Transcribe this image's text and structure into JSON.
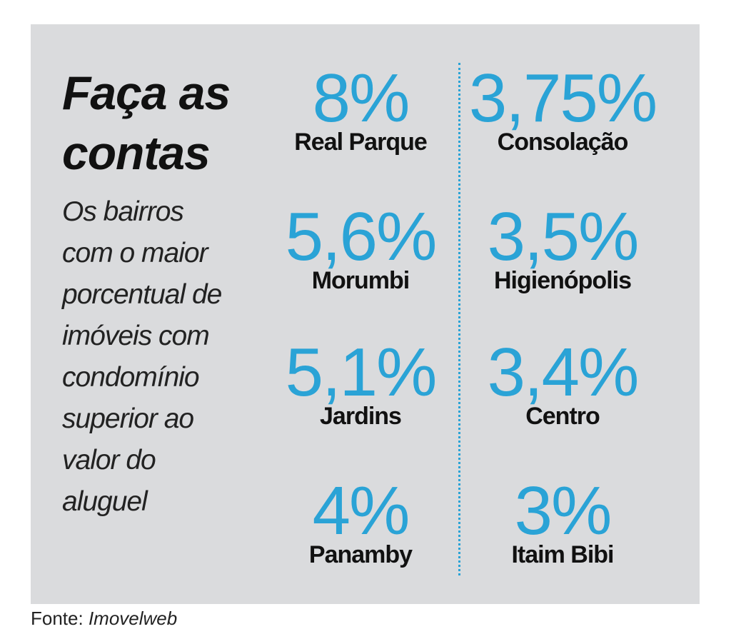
{
  "headline": [
    "Faça as",
    "contas"
  ],
  "subtitle": [
    "Os bairros",
    "com o maior",
    "porcentual de",
    "imóveis com",
    "condomínio",
    "superior ao",
    "valor do",
    "aluguel"
  ],
  "source": {
    "prefix": "Fonte:",
    "name": "Imovelweb"
  },
  "colors": {
    "accent": "#2aa3d6",
    "panel": "#dadbdd",
    "text": "#111111"
  },
  "chart_data": {
    "type": "table",
    "title": "Faça as contas",
    "subtitle": "Os bairros com o maior porcentual de imóveis com condomínio superior ao valor do aluguel",
    "unit": "%",
    "columns": [
      {
        "items": [
          {
            "display": "8%",
            "value": 8,
            "name": "Real Parque"
          },
          {
            "display": "5,6%",
            "value": 5.6,
            "name": "Morumbi"
          },
          {
            "display": "5,1%",
            "value": 5.1,
            "name": "Jardins"
          },
          {
            "display": "4%",
            "value": 4,
            "name": "Panamby"
          }
        ]
      },
      {
        "items": [
          {
            "display": "3,75%",
            "value": 3.75,
            "name": "Consolação"
          },
          {
            "display": "3,5%",
            "value": 3.5,
            "name": "Higienópolis"
          },
          {
            "display": "3,4%",
            "value": 3.4,
            "name": "Centro"
          },
          {
            "display": "3%",
            "value": 3,
            "name": "Itaim Bibi"
          }
        ]
      }
    ],
    "source": "Fonte: Imovelweb"
  }
}
